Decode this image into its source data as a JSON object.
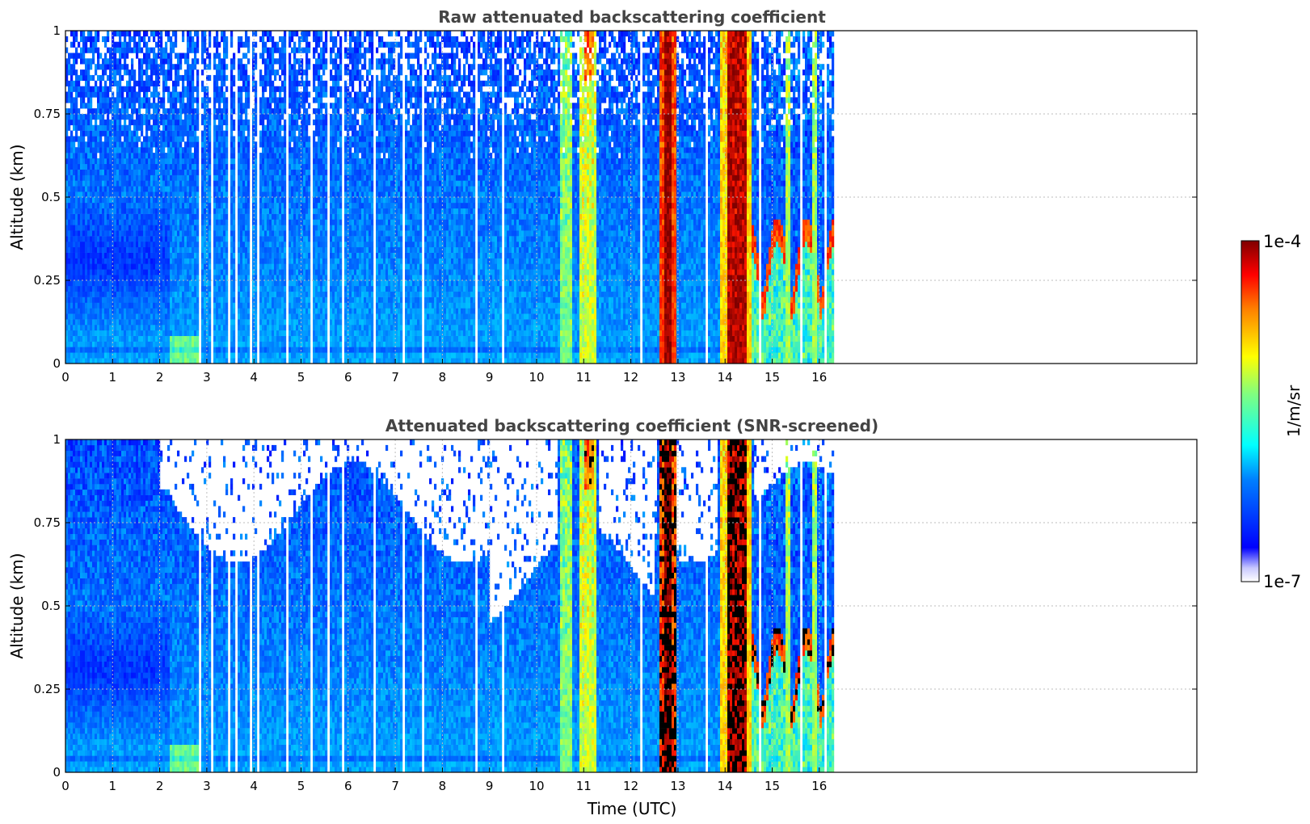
{
  "chart_data": [
    {
      "type": "heatmap",
      "title": "Raw attenuated backscattering coefficient",
      "xlabel": "",
      "ylabel": "Altitude (km)",
      "xlim": [
        0,
        24
      ],
      "ylim": [
        0,
        1
      ],
      "xticks": [
        "0",
        "1",
        "2",
        "3",
        "4",
        "5",
        "6",
        "7",
        "8",
        "9",
        "10",
        "11",
        "12",
        "13",
        "14",
        "15",
        "16"
      ],
      "yticks": [
        "0",
        "0.25",
        "0.5",
        "0.75",
        "1"
      ],
      "grid": true,
      "screened": false,
      "data_end_hour": 16.3,
      "features": [
        {
          "t_start": 10.5,
          "t_end": 11.25,
          "level": "high",
          "note": "cloud/precip columns"
        },
        {
          "t_start": 12.6,
          "t_end": 12.95,
          "level": "max",
          "note": "saturated column"
        },
        {
          "t_start": 13.8,
          "t_end": 14.6,
          "level": "max",
          "note": "saturated column"
        },
        {
          "t_start": 14.6,
          "t_end": 16.3,
          "level": "high",
          "note": "low cloud layer at 0.15-0.45 km"
        }
      ]
    },
    {
      "type": "heatmap",
      "title": "Attenuated backscattering coefficient (SNR-screened)",
      "xlabel": "Time (UTC)",
      "ylabel": "Altitude (km)",
      "xlim": [
        0,
        24
      ],
      "ylim": [
        0,
        1
      ],
      "xticks": [
        "0",
        "1",
        "2",
        "3",
        "4",
        "5",
        "6",
        "7",
        "8",
        "9",
        "10",
        "11",
        "12",
        "13",
        "14",
        "15",
        "16"
      ],
      "yticks": [
        "0",
        "0.25",
        "0.5",
        "0.75",
        "1"
      ],
      "grid": true,
      "screened": true,
      "data_end_hour": 16.3
    }
  ],
  "colorbar": {
    "label": "1/m/sr",
    "max_label": "1e-4",
    "min_label": "1e-7",
    "scale": "log",
    "range": [
      1e-07,
      0.0001
    ],
    "colormap": "jet"
  }
}
